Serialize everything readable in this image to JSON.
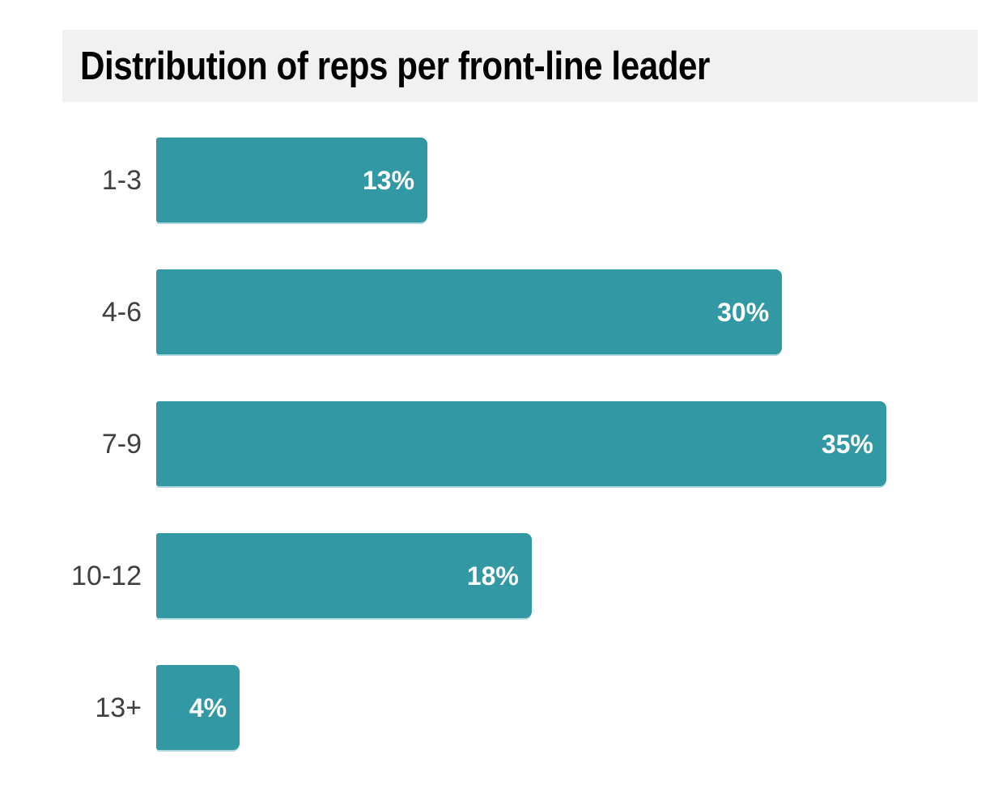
{
  "chart_data": {
    "type": "bar",
    "orientation": "horizontal",
    "title": "Distribution of reps per front-line leader",
    "categories": [
      "1-3",
      "4-6",
      "7-9",
      "10-12",
      "13+"
    ],
    "values": [
      13,
      30,
      35,
      18,
      4
    ],
    "value_labels": [
      "13%",
      "30%",
      "35%",
      "18%",
      "4%"
    ],
    "unit": "%",
    "xlim": [
      0,
      35
    ],
    "grid": false,
    "legend": false,
    "axes_visible": false,
    "value_label_position": "inside-end",
    "xlabel": "",
    "ylabel": ""
  },
  "colors": {
    "background": "#ffffff",
    "title_band_bg": "#f1f1f1",
    "title_text": "#000000",
    "bar": "#3299a4",
    "bar_bottom_edge": "#aed9de",
    "category_label": "#3f3f3f",
    "value_label": "#ffffff"
  }
}
